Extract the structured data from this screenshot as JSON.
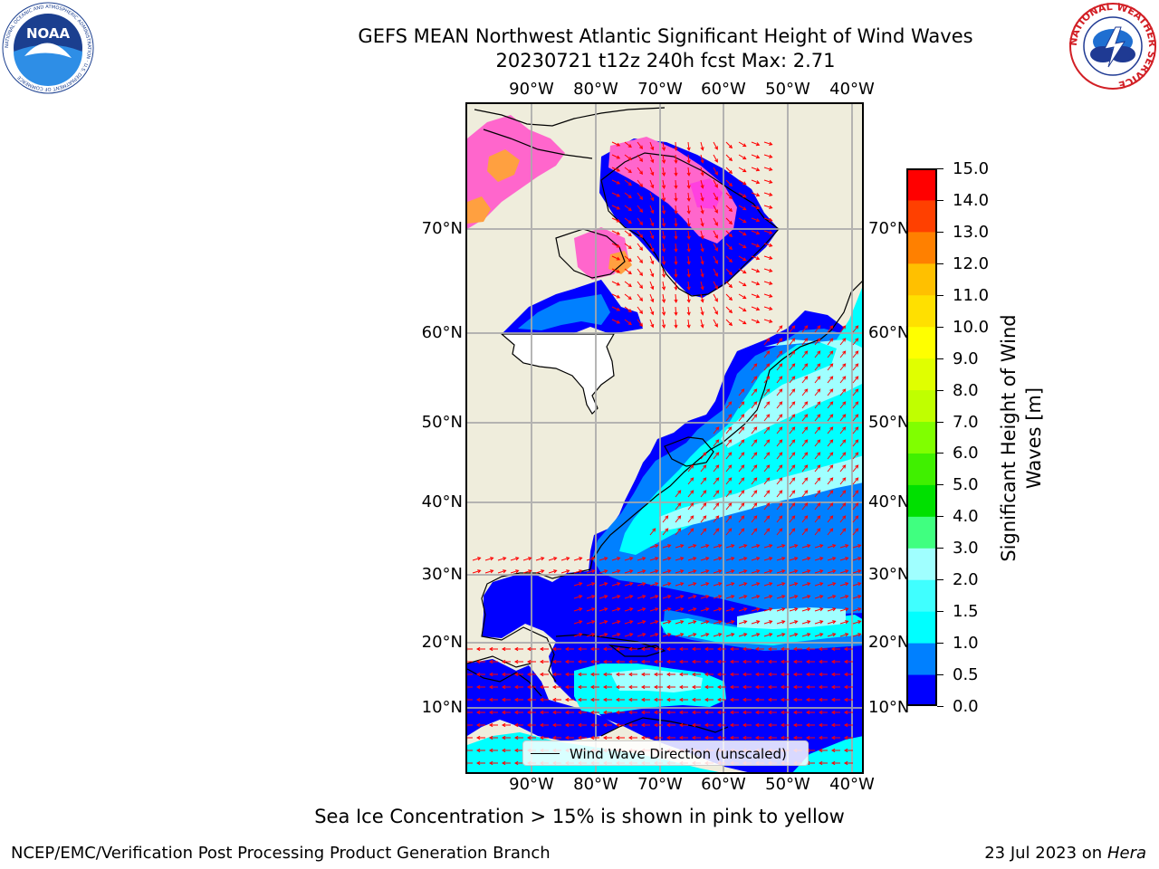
{
  "header": {
    "title_line1": "GEFS MEAN Northwest Atlantic Significant Height of Wind Waves",
    "title_line2": "20230721 t12z 240h fcst   Max: 2.71"
  },
  "logos": {
    "noaa_text": "NOAA",
    "noaa_ring_text": "NATIONAL OCEANIC AND ATMOSPHERIC ADMINISTRATION · U.S. DEPARTMENT OF COMMERCE",
    "nws_ring_text": "NATIONAL WEATHER SERVICE"
  },
  "map": {
    "lon_ticks": [
      "90°W",
      "80°W",
      "70°W",
      "60°W",
      "50°W",
      "40°W"
    ],
    "lat_ticks": [
      "70°N",
      "60°N",
      "50°N",
      "40°N",
      "30°N",
      "20°N",
      "10°N"
    ],
    "land_color": "#efeddc",
    "ocean_colors": {
      "0.0-0.5": "#0000ff",
      "0.5-1.0": "#0080ff",
      "1.0-1.5": "#00ffff",
      "1.5-2.0": "#40ffff",
      "2.0-3.0": "#a0ffff",
      "sea_ice_pink": "#ff66cc",
      "sea_ice_orange": "#ffa040"
    },
    "arrow_color": "#ff0000",
    "grid_color": "#aaaaaa",
    "legend_label": "Wind Wave Direction (unscaled)"
  },
  "colorbar": {
    "title_line1": "Significant Height of Wind",
    "title_line2": "Waves [m]",
    "levels": [
      "0.0",
      "0.5",
      "1.0",
      "1.5",
      "2.0",
      "3.0",
      "4.0",
      "5.0",
      "6.0",
      "7.0",
      "8.0",
      "9.0",
      "10.0",
      "11.0",
      "12.0",
      "13.0",
      "14.0",
      "15.0"
    ],
    "colors": [
      "#0000ff",
      "#0080ff",
      "#00ffff",
      "#40ffff",
      "#a0ffff",
      "#40ff80",
      "#00e000",
      "#40f000",
      "#80ff00",
      "#c0ff00",
      "#e0ff00",
      "#ffff00",
      "#ffe000",
      "#ffc000",
      "#ff8000",
      "#ff4000",
      "#ff0000"
    ]
  },
  "footer": {
    "note": "Sea Ice Concentration > 15% is shown in pink to yellow",
    "left": "NCEP/EMC/Verification Post Processing Product Generation Branch",
    "right_prefix": "23 Jul 2023 on ",
    "right_host": "Hera"
  }
}
